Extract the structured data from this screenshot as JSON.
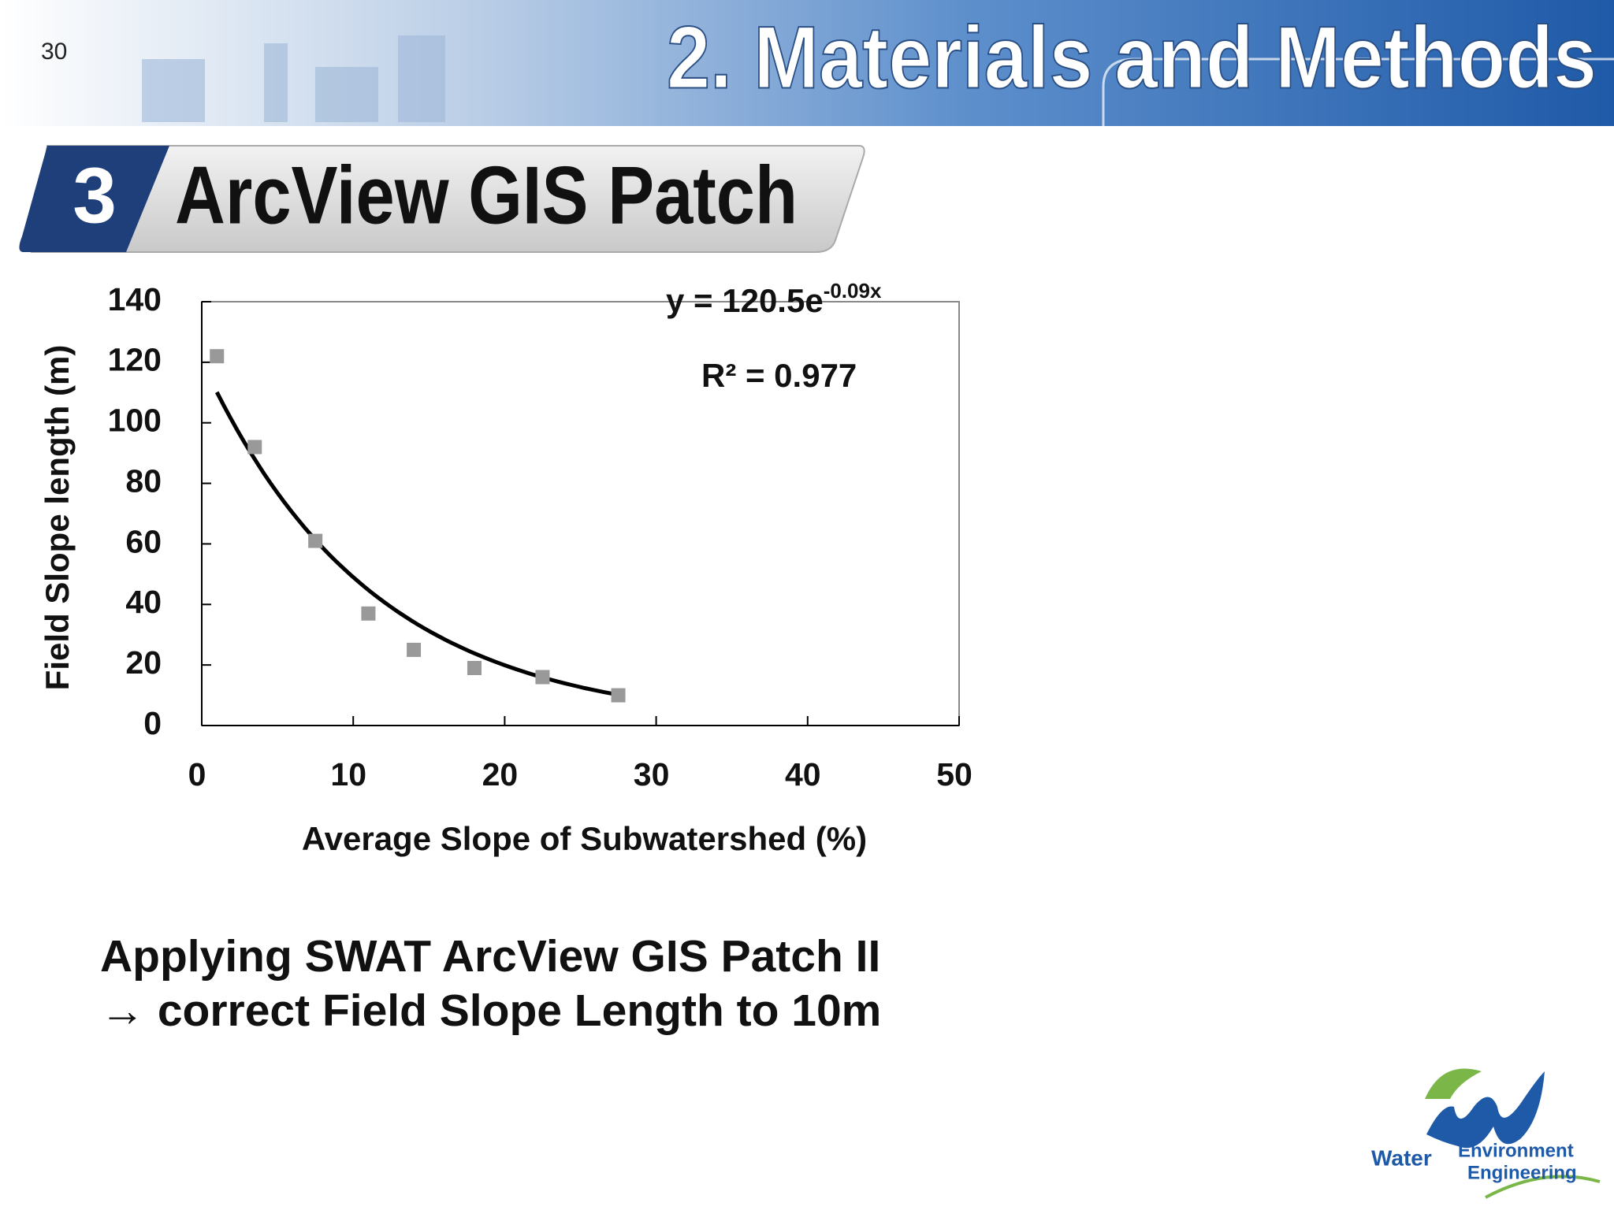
{
  "slide_number": "30",
  "header": {
    "title": "2.  Materials and Methods"
  },
  "section": {
    "number": "3",
    "title": "ArcView GIS Patch"
  },
  "chart_data": {
    "type": "scatter",
    "x_label": "Average Slope of Subwatershed (%)",
    "y_label": "Field Slope length (m)",
    "equation": {
      "base": "y = 120.5e",
      "exponent": "-0.09x"
    },
    "r_squared": "R² = 0.977",
    "series": [
      {
        "color": "#999999",
        "x": [
          1,
          3.5,
          7.5,
          11,
          14,
          18,
          22.5,
          27.5
        ],
        "values": [
          122,
          92,
          61,
          37,
          25,
          19,
          16,
          10
        ]
      }
    ],
    "trendline": {
      "type": "exponential",
      "coefficient": 120.5,
      "rate": -0.09,
      "x": [
        1,
        27.5
      ],
      "color": "#000000"
    },
    "xlim": [
      0,
      50
    ],
    "xticks": [
      0,
      10,
      20,
      30,
      40,
      50
    ],
    "ylim": [
      0,
      140
    ],
    "yticks": [
      0,
      20,
      40,
      60,
      80,
      100,
      120,
      140
    ],
    "grid": false
  },
  "body": {
    "lines": [
      "Applying SWAT ArcView GIS Patch II",
      "→ correct Field Slope Length to 10m"
    ]
  },
  "logo": {
    "word1": "Water",
    "word2": "Environment",
    "word3": "Engineering"
  }
}
